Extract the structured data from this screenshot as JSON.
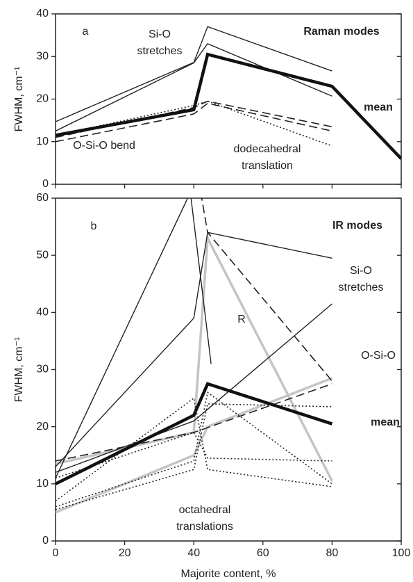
{
  "chart_data": [
    {
      "type": "line",
      "panel": "a",
      "ylabel": "FWHM, cm⁻¹",
      "xlim": [
        0,
        100
      ],
      "ylim": [
        0,
        40
      ],
      "xticks": [
        0,
        20,
        40,
        60,
        80,
        100
      ],
      "yticks": [
        0,
        10,
        20,
        30,
        40
      ],
      "annotations": [
        [
          "Si-O",
          "stretches"
        ],
        [
          "Raman modes"
        ],
        [
          "mean"
        ],
        [
          "O-Si-O bend"
        ],
        [
          "dodecahedral",
          "translation"
        ]
      ],
      "series": [
        {
          "style": "thin",
          "color": "#222",
          "x": [
            0,
            40,
            44,
            80
          ],
          "values": [
            14.7,
            28.6,
            37,
            26.6
          ]
        },
        {
          "style": "thin",
          "color": "#222",
          "x": [
            0,
            40,
            44,
            80
          ],
          "values": [
            12.5,
            28.5,
            33,
            20.7
          ]
        },
        {
          "style": "dashed",
          "color": "#222",
          "x": [
            0,
            40,
            44,
            80
          ],
          "values": [
            11,
            18,
            19.5,
            13.5
          ]
        },
        {
          "style": "dashed",
          "color": "#222",
          "x": [
            0,
            40,
            44,
            80
          ],
          "values": [
            10,
            16.5,
            19,
            12.5
          ]
        },
        {
          "style": "dotted",
          "color": "#222",
          "x": [
            0,
            40,
            44,
            80
          ],
          "values": [
            11.5,
            18.5,
            19.5,
            9
          ]
        },
        {
          "style": "thick",
          "color": "#111",
          "x": [
            0,
            40,
            44,
            80,
            100
          ],
          "values": [
            11.5,
            17.5,
            30.5,
            23,
            6
          ]
        }
      ]
    },
    {
      "type": "line",
      "panel": "b",
      "ylabel": "FWHM, cm⁻¹",
      "xlabel": "Majorite content, %",
      "xlim": [
        0,
        100
      ],
      "ylim": [
        0,
        60
      ],
      "xticks": [
        0,
        20,
        40,
        60,
        80,
        100
      ],
      "yticks": [
        0,
        10,
        20,
        30,
        40,
        50,
        60
      ],
      "annotations": [
        [
          "IR modes"
        ],
        [
          "Si-O",
          "stretches"
        ],
        [
          "R"
        ],
        [
          "O-Si-O"
        ],
        [
          "mean"
        ],
        [
          "octahedral",
          "translations"
        ]
      ],
      "series": [
        {
          "style": "grey",
          "color": "#c4c4c4",
          "x": [
            0,
            40,
            44,
            80
          ],
          "values": [
            13.5,
            19,
            53,
            10.5
          ]
        },
        {
          "style": "grey",
          "color": "#c4c4c4",
          "x": [
            0,
            40,
            44,
            80
          ],
          "values": [
            5,
            15,
            20,
            28.5
          ]
        },
        {
          "style": "thin",
          "color": "#222",
          "x": [
            0,
            40,
            44,
            80
          ],
          "values": [
            13,
            39,
            54,
            49.5
          ]
        },
        {
          "style": "thin",
          "color": "#222",
          "x": [
            0,
            39,
            45
          ],
          "values": [
            11,
            61,
            31
          ]
        },
        {
          "style": "thin",
          "color": "#222",
          "x": [
            0,
            40,
            80
          ],
          "values": [
            12,
            21,
            41.5
          ]
        },
        {
          "style": "dashed",
          "color": "#222",
          "x": [
            42,
            44,
            80
          ],
          "values": [
            61,
            54,
            28
          ]
        },
        {
          "style": "dashed",
          "color": "#222",
          "x": [
            0,
            40,
            80
          ],
          "values": [
            14,
            19,
            27.5
          ]
        },
        {
          "style": "dotted",
          "color": "#222",
          "x": [
            0,
            40,
            44,
            80
          ],
          "values": [
            7,
            25,
            12.5,
            9.5
          ]
        },
        {
          "style": "dotted",
          "color": "#222",
          "x": [
            0,
            40,
            44,
            80
          ],
          "values": [
            6,
            14,
            26,
            10
          ]
        },
        {
          "style": "dotted",
          "color": "#222",
          "x": [
            0,
            40,
            44,
            80
          ],
          "values": [
            5.5,
            12.5,
            24,
            23.5
          ]
        },
        {
          "style": "dotted",
          "color": "#222",
          "x": [
            0,
            40,
            44,
            80
          ],
          "values": [
            11,
            19,
            14.5,
            14
          ]
        },
        {
          "style": "thick",
          "color": "#111",
          "x": [
            0,
            40,
            44,
            80
          ],
          "values": [
            10,
            22,
            27.5,
            20.5
          ]
        }
      ]
    }
  ]
}
